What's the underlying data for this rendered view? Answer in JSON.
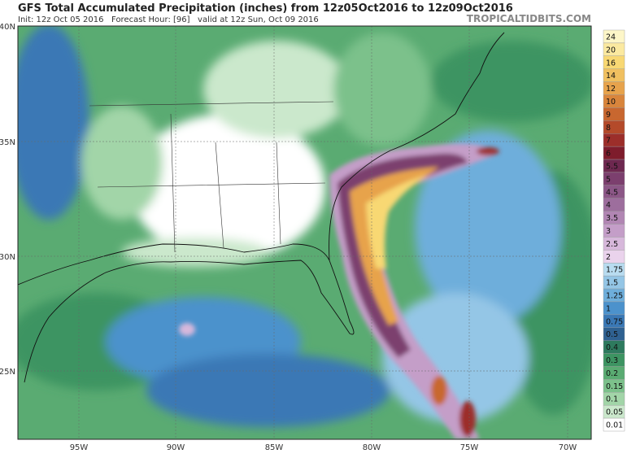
{
  "header": {
    "title": "GFS Total Accumulated Precipitation (inches) from 12z05Oct2016 to 12z09Oct2016",
    "subtitle": "Init: 12z Oct 05 2016   Forecast Hour: [96]   valid at 12z Sun, Oct 09 2016",
    "watermark": "TROPICALTIDBITS.COM"
  },
  "map": {
    "lat_labels": [
      "40N",
      "35N",
      "30N",
      "25N"
    ],
    "lon_labels": [
      "95W",
      "90W",
      "85W",
      "80W",
      "75W",
      "70W"
    ]
  },
  "legend": [
    {
      "label": "24",
      "color": "#fdf6c8"
    },
    {
      "label": "20",
      "color": "#fbe9a0"
    },
    {
      "label": "16",
      "color": "#f8d873"
    },
    {
      "label": "14",
      "color": "#f0c060"
    },
    {
      "label": "12",
      "color": "#e7a34c"
    },
    {
      "label": "10",
      "color": "#d9853c"
    },
    {
      "label": "9",
      "color": "#c8672f"
    },
    {
      "label": "8",
      "color": "#b44a2a"
    },
    {
      "label": "7",
      "color": "#9c2e2a"
    },
    {
      "label": "6",
      "color": "#7e1c2c"
    },
    {
      "label": "5.5",
      "color": "#6e2850"
    },
    {
      "label": "5",
      "color": "#7c3f6e"
    },
    {
      "label": "4.5",
      "color": "#8c5787"
    },
    {
      "label": "4",
      "color": "#9d6e9d"
    },
    {
      "label": "3.5",
      "color": "#b186b3"
    },
    {
      "label": "3",
      "color": "#c49ec8"
    },
    {
      "label": "2.5",
      "color": "#d7b8db"
    },
    {
      "label": "2",
      "color": "#ead3ec"
    },
    {
      "label": "1.75",
      "color": "#b8dcf0"
    },
    {
      "label": "1.5",
      "color": "#94c6e6"
    },
    {
      "label": "1.25",
      "color": "#6eaedb"
    },
    {
      "label": "1",
      "color": "#4c92cc"
    },
    {
      "label": "0.75",
      "color": "#3a78b5"
    },
    {
      "label": "0.5",
      "color": "#2f6191"
    },
    {
      "label": "0.4",
      "color": "#2e7a5e"
    },
    {
      "label": "0.3",
      "color": "#3d9462"
    },
    {
      "label": "0.2",
      "color": "#5aab72"
    },
    {
      "label": "0.15",
      "color": "#7cc18b"
    },
    {
      "label": "0.1",
      "color": "#a2d5a8"
    },
    {
      "label": "0.05",
      "color": "#cbe8cc"
    },
    {
      "label": "0.01",
      "color": "#ffffff"
    }
  ]
}
